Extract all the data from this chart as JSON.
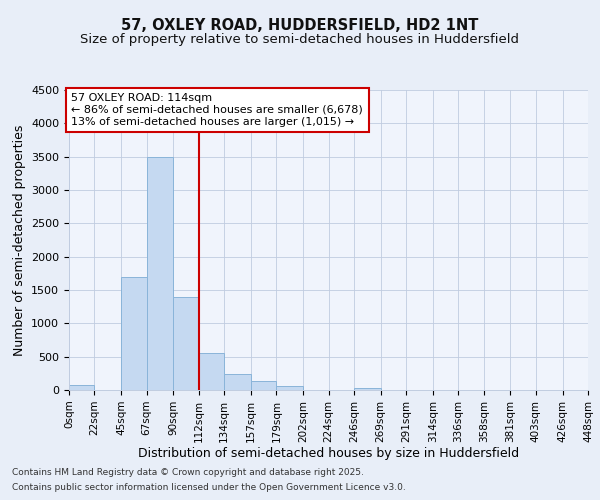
{
  "title_line1": "57, OXLEY ROAD, HUDDERSFIELD, HD2 1NT",
  "title_line2": "Size of property relative to semi-detached houses in Huddersfield",
  "xlabel": "Distribution of semi-detached houses by size in Huddersfield",
  "ylabel": "Number of semi-detached properties",
  "footnote1": "Contains HM Land Registry data © Crown copyright and database right 2025.",
  "footnote2": "Contains public sector information licensed under the Open Government Licence v3.0.",
  "annotation_line1": "57 OXLEY ROAD: 114sqm",
  "annotation_line2": "← 86% of semi-detached houses are smaller (6,678)",
  "annotation_line3": "13% of semi-detached houses are larger (1,015) →",
  "property_size": 114,
  "bar_edges": [
    0,
    22,
    45,
    67,
    90,
    112,
    134,
    157,
    179,
    202,
    224,
    246,
    269,
    291,
    314,
    336,
    358,
    381,
    403,
    426,
    448
  ],
  "bar_heights": [
    75,
    0,
    1700,
    3500,
    1400,
    550,
    240,
    130,
    55,
    0,
    0,
    30,
    0,
    0,
    0,
    0,
    0,
    0,
    0,
    0
  ],
  "bar_color": "#c5d9f1",
  "bar_edge_color": "#8ab4d9",
  "vline_color": "#cc0000",
  "vline_x": 112,
  "annotation_box_color": "#cc0000",
  "ylim": [
    0,
    4500
  ],
  "yticks": [
    0,
    500,
    1000,
    1500,
    2000,
    2500,
    3000,
    3500,
    4000,
    4500
  ],
  "background_color": "#e8eef8",
  "plot_bg_color": "#f0f4fc",
  "grid_color": "#c0cce0",
  "title_fontsize": 10.5,
  "subtitle_fontsize": 9.5,
  "axis_label_fontsize": 9,
  "tick_fontsize": 8,
  "annot_fontsize": 8
}
